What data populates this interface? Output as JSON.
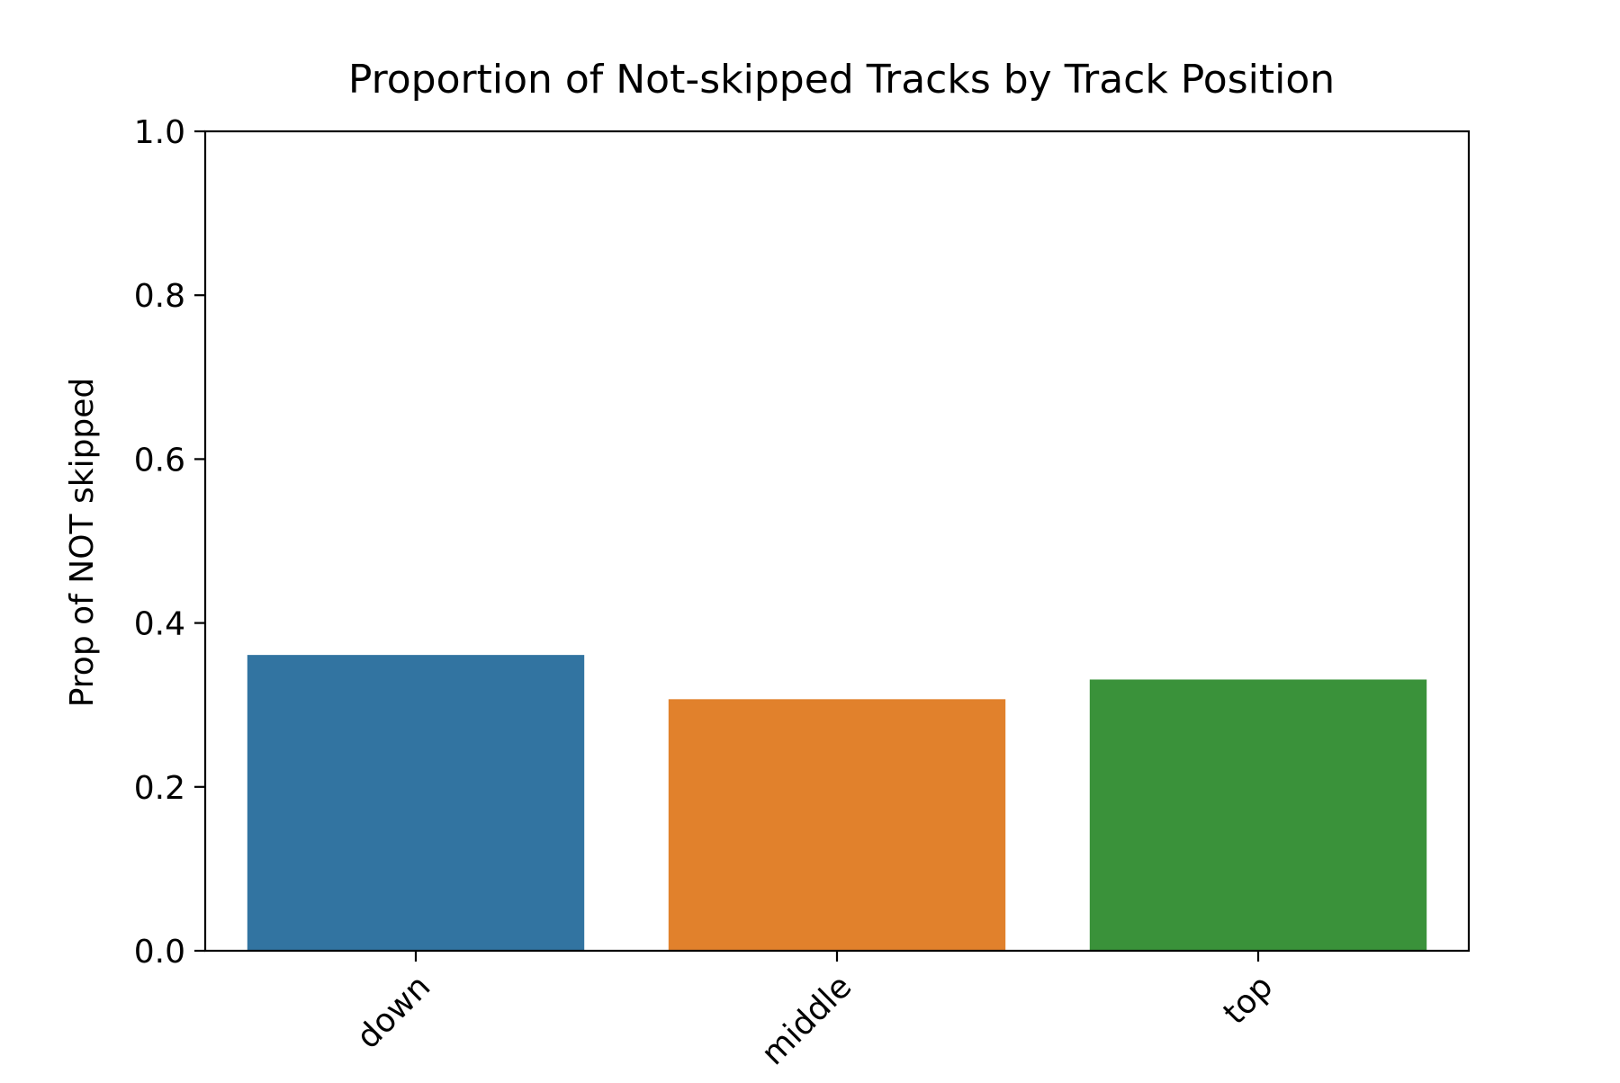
{
  "chart_data": {
    "type": "bar",
    "title": "Proportion of Not-skipped Tracks by Track Position",
    "xlabel": "",
    "ylabel": "Prop of NOT skipped",
    "categories": [
      "down",
      "middle",
      "top"
    ],
    "values": [
      0.361,
      0.307,
      0.331
    ],
    "colors": [
      "#3274a1",
      "#e1812c",
      "#3a923a"
    ],
    "ylim": [
      0,
      1.0
    ],
    "yticks": [
      "0.0",
      "0.2",
      "0.4",
      "0.6",
      "0.8",
      "1.0"
    ],
    "grid": false,
    "legend": "none"
  }
}
